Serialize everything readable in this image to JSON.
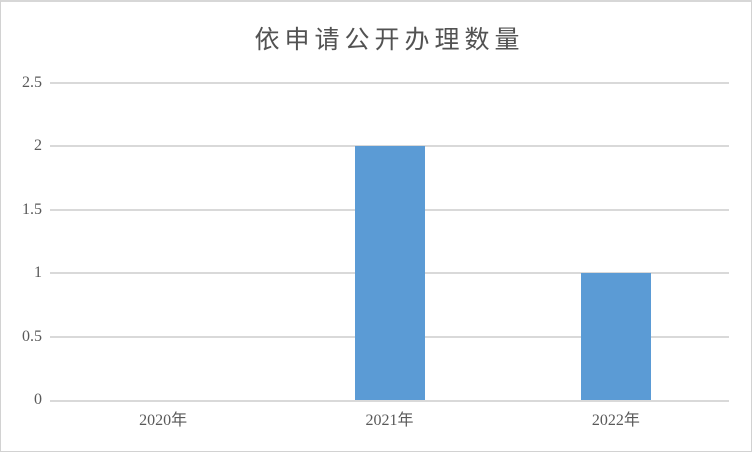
{
  "chart_data": {
    "type": "bar",
    "title": "依申请公开办理数量",
    "categories": [
      "2020年",
      "2021年",
      "2022年"
    ],
    "values": [
      0,
      2,
      1
    ],
    "xlabel": "",
    "ylabel": "",
    "ylim": [
      0,
      2.5
    ],
    "ytick_step": 0.5,
    "ytick_labels": [
      "0",
      "0.5",
      "1",
      "1.5",
      "2",
      "2.5"
    ],
    "grid": true,
    "legend_position": "none",
    "bar_color": "#5B9BD5",
    "gridline_color": "#d9d9d9",
    "axis_line_color": "#d9d9d9",
    "tick_label_color": "#595959",
    "title_color": "#525252",
    "frame_border_color": "#d2d2d2",
    "background_color": "#ffffff"
  }
}
